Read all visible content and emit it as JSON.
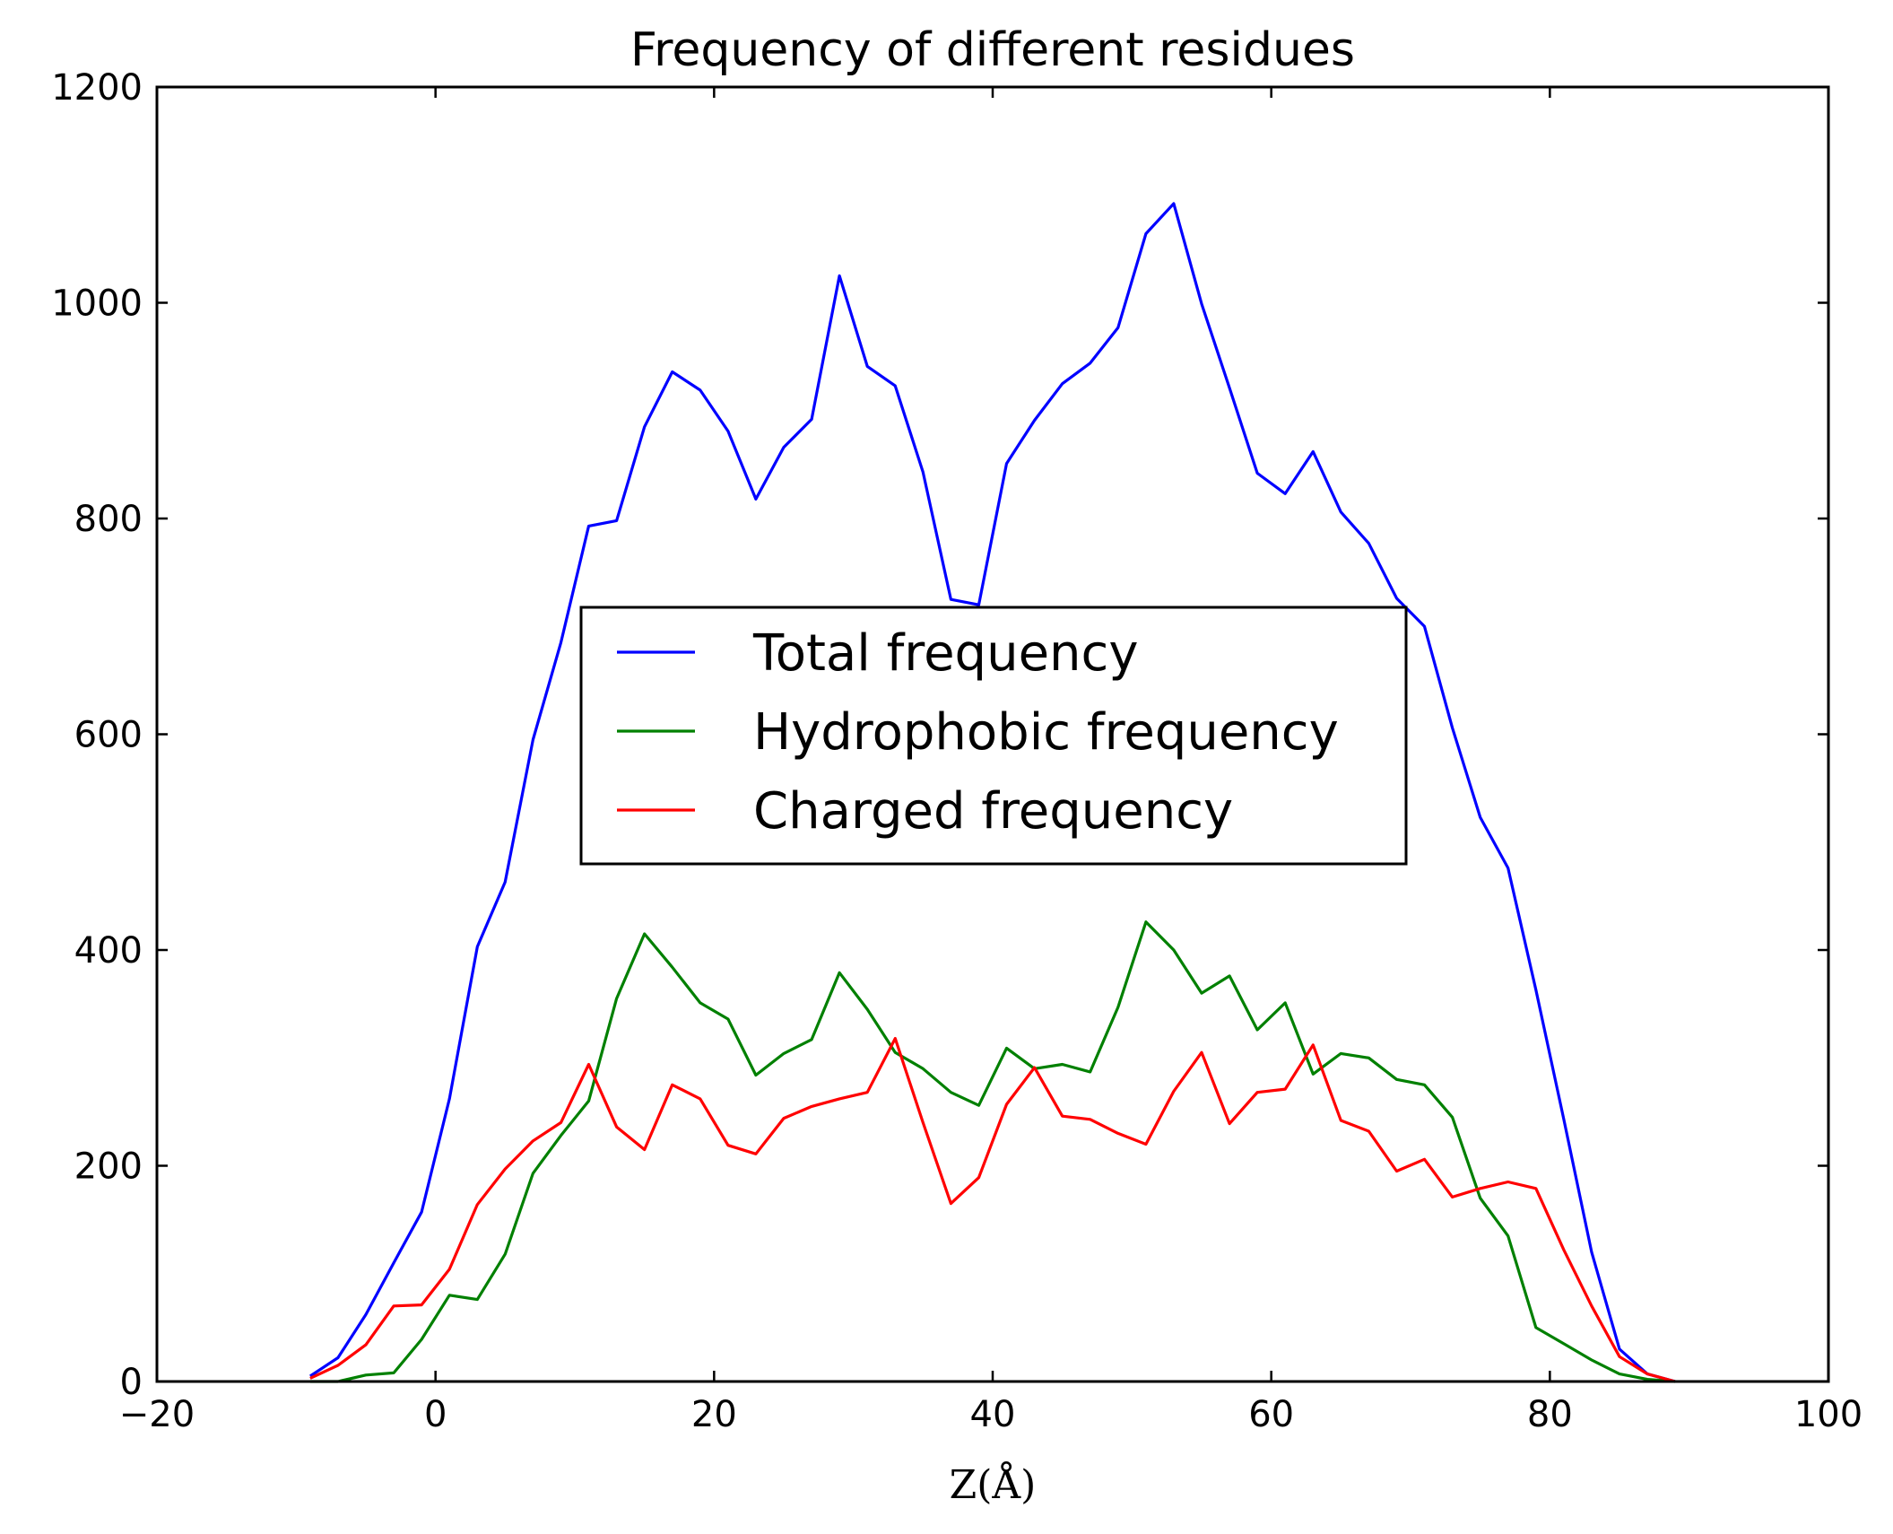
{
  "chart_data": {
    "type": "line",
    "title": "Frequency of different residues",
    "xlabel": "Z(Å)",
    "ylabel": "",
    "xlim": [
      -20,
      100
    ],
    "ylim": [
      0,
      1200
    ],
    "xticks": [
      -20,
      0,
      20,
      40,
      60,
      80,
      100
    ],
    "yticks": [
      0,
      200,
      400,
      600,
      800,
      1000,
      1200
    ],
    "xtick_labels": [
      "−20",
      "0",
      "20",
      "40",
      "60",
      "80",
      "100"
    ],
    "ytick_labels": [
      "0",
      "200",
      "400",
      "600",
      "800",
      "1000",
      "1200"
    ],
    "grid": false,
    "legend_position": "center",
    "x": [
      -9,
      -7,
      -5,
      -3,
      -1,
      1,
      3,
      5,
      7,
      9,
      11,
      13,
      15,
      17,
      19,
      21,
      23,
      25,
      27,
      29,
      31,
      33,
      35,
      37,
      39,
      41,
      43,
      45,
      47,
      49,
      51,
      53,
      55,
      57,
      59,
      61,
      63,
      65,
      67,
      69,
      71,
      73,
      75,
      77,
      79,
      81,
      83,
      85,
      87,
      89
    ],
    "series": [
      {
        "name": "Total frequency",
        "color": "#0000ff",
        "values": [
          5,
          22,
          62,
          110,
          157,
          262,
          403,
          463,
          595,
          685,
          793,
          798,
          885,
          936,
          919,
          881,
          818,
          866,
          892,
          1025,
          941,
          923,
          843,
          725,
          720,
          851,
          891,
          925,
          944,
          977,
          1064,
          1092,
          999,
          921,
          842,
          823,
          862,
          806,
          777,
          726,
          700,
          606,
          523,
          476,
          363,
          243,
          120,
          30,
          7,
          0
        ]
      },
      {
        "name": "Hydrophobic frequency",
        "color": "#008000",
        "values": [
          0,
          0,
          6,
          8,
          39,
          80,
          76,
          118,
          193,
          228,
          260,
          355,
          415,
          384,
          351,
          336,
          284,
          304,
          317,
          379,
          345,
          305,
          290,
          268,
          256,
          309,
          290,
          294,
          287,
          347,
          426,
          400,
          360,
          376,
          326,
          351,
          285,
          304,
          300,
          280,
          275,
          245,
          170,
          135,
          50,
          35,
          20,
          7,
          2,
          0
        ]
      },
      {
        "name": "Charged frequency",
        "color": "#ff0000",
        "values": [
          3,
          15,
          34,
          70,
          71,
          104,
          164,
          197,
          223,
          240,
          294,
          236,
          215,
          275,
          262,
          219,
          211,
          244,
          255,
          262,
          268,
          318,
          240,
          165,
          189,
          257,
          291,
          246,
          243,
          230,
          220,
          269,
          305,
          239,
          268,
          271,
          312,
          242,
          232,
          195,
          206,
          171,
          179,
          185,
          179,
          122,
          70,
          23,
          7,
          0
        ]
      }
    ]
  }
}
